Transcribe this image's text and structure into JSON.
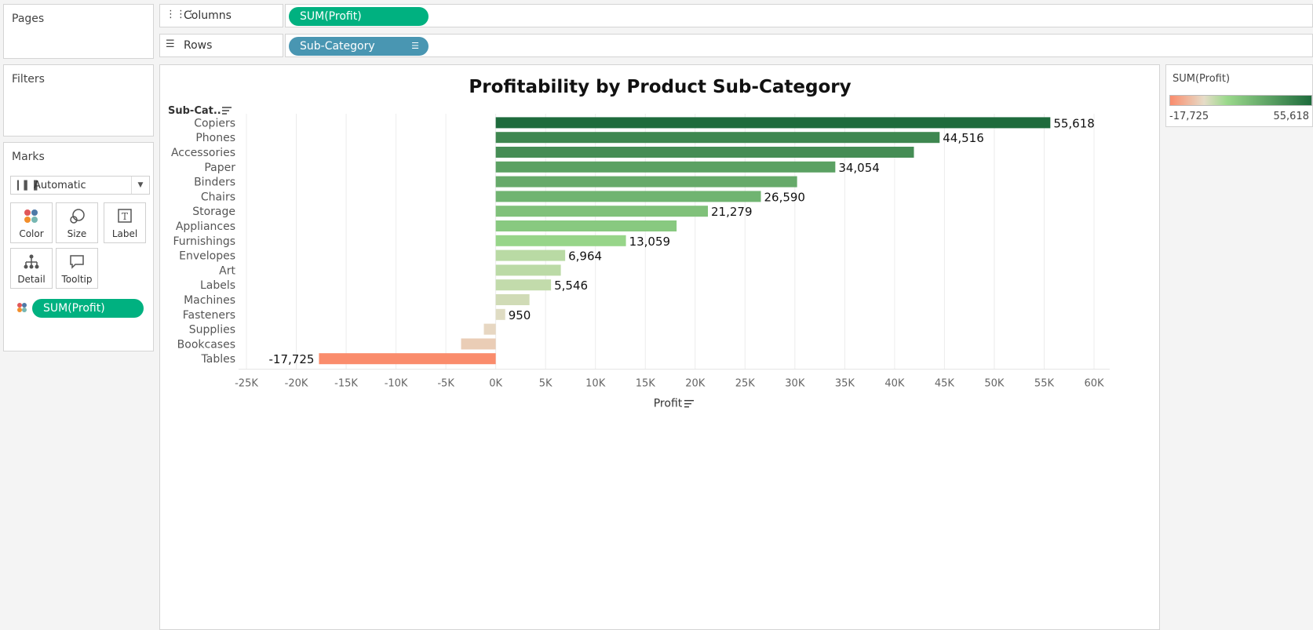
{
  "panels": {
    "pages": "Pages",
    "filters": "Filters",
    "marks": "Marks"
  },
  "marks": {
    "type": "Automatic",
    "buttons": [
      "Color",
      "Size",
      "Label",
      "Detail",
      "Tooltip"
    ],
    "field": "SUM(Profit)"
  },
  "shelves": {
    "columns_label": "Columns",
    "columns_pill": "SUM(Profit)",
    "rows_label": "Rows",
    "rows_pill": "Sub-Category"
  },
  "legend": {
    "title": "SUM(Profit)",
    "min_label": "-17,725",
    "max_label": "55,618",
    "colors": [
      "#fa8c6c",
      "#e6dcc8",
      "#9bd98c",
      "#1e6b3c"
    ]
  },
  "chart_data": {
    "type": "bar",
    "orientation": "horizontal",
    "title": "Profitability by Product Sub-Category",
    "ylabel": "Sub-Cat..",
    "xlabel": "Profit",
    "xlim": [
      -25000,
      60000
    ],
    "xticks": [
      "-25K",
      "-20K",
      "-15K",
      "-10K",
      "-5K",
      "0K",
      "5K",
      "10K",
      "15K",
      "20K",
      "25K",
      "30K",
      "35K",
      "40K",
      "45K",
      "50K",
      "55K",
      "60K"
    ],
    "categories": [
      "Copiers",
      "Phones",
      "Accessories",
      "Paper",
      "Binders",
      "Chairs",
      "Storage",
      "Appliances",
      "Furnishings",
      "Envelopes",
      "Art",
      "Labels",
      "Machines",
      "Fasteners",
      "Supplies",
      "Bookcases",
      "Tables"
    ],
    "values": [
      55618,
      44516,
      41937,
      34054,
      30222,
      26590,
      21279,
      18138,
      13059,
      6964,
      6528,
      5546,
      3385,
      950,
      -1189,
      -3473,
      -17725
    ],
    "data_labels": [
      "55,618",
      "44,516",
      "",
      "34,054",
      "",
      "26,590",
      "21,279",
      "",
      "13,059",
      "6,964",
      "",
      "5,546",
      "",
      "950",
      "",
      "",
      "-17,725"
    ],
    "grid": true,
    "legend": "right"
  }
}
